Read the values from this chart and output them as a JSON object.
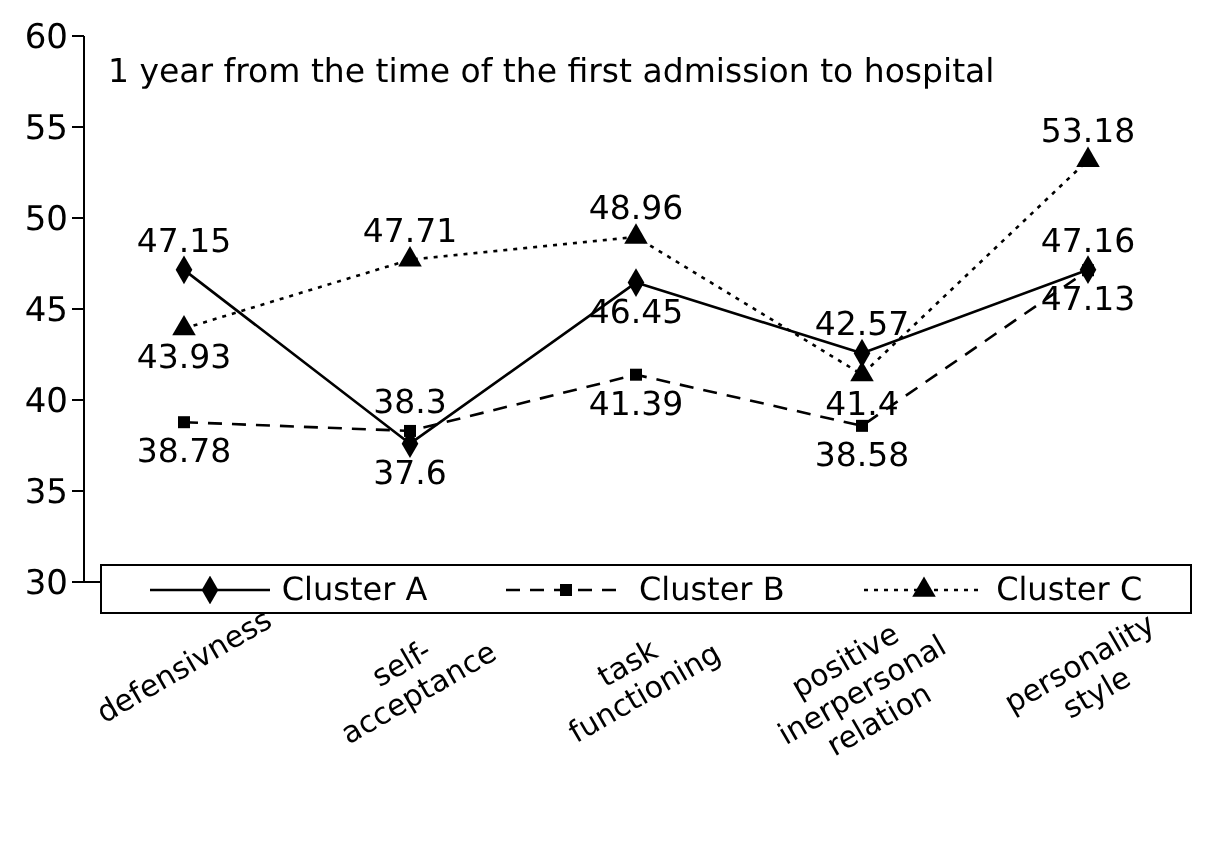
{
  "chart_data": {
    "type": "line",
    "title": "1 year from the time of the first admission to hospital",
    "categories": [
      "defensivness",
      "self-\nacceptance",
      "task\nfunctioning",
      "positive\ninerpersonal\nrelation",
      "personality\nstyle"
    ],
    "series": [
      {
        "name": "Cluster A",
        "color": "#000000",
        "marker": "diamond",
        "line_style": "solid",
        "values": [
          47.15,
          37.6,
          46.45,
          42.57,
          47.16
        ]
      },
      {
        "name": "Cluster B",
        "color": "#000000",
        "marker": "square",
        "line_style": "dashed",
        "values": [
          38.78,
          38.3,
          41.39,
          38.58,
          47.13
        ]
      },
      {
        "name": "Cluster C",
        "color": "#000000",
        "marker": "triangle",
        "line_style": "dotted",
        "values": [
          43.93,
          47.71,
          48.96,
          41.4,
          53.18
        ]
      }
    ],
    "ylim": [
      30,
      60
    ],
    "yticks": [
      30,
      35,
      40,
      45,
      50,
      55,
      60
    ],
    "grid": false,
    "legend": "bottom",
    "data_labels": true
  }
}
